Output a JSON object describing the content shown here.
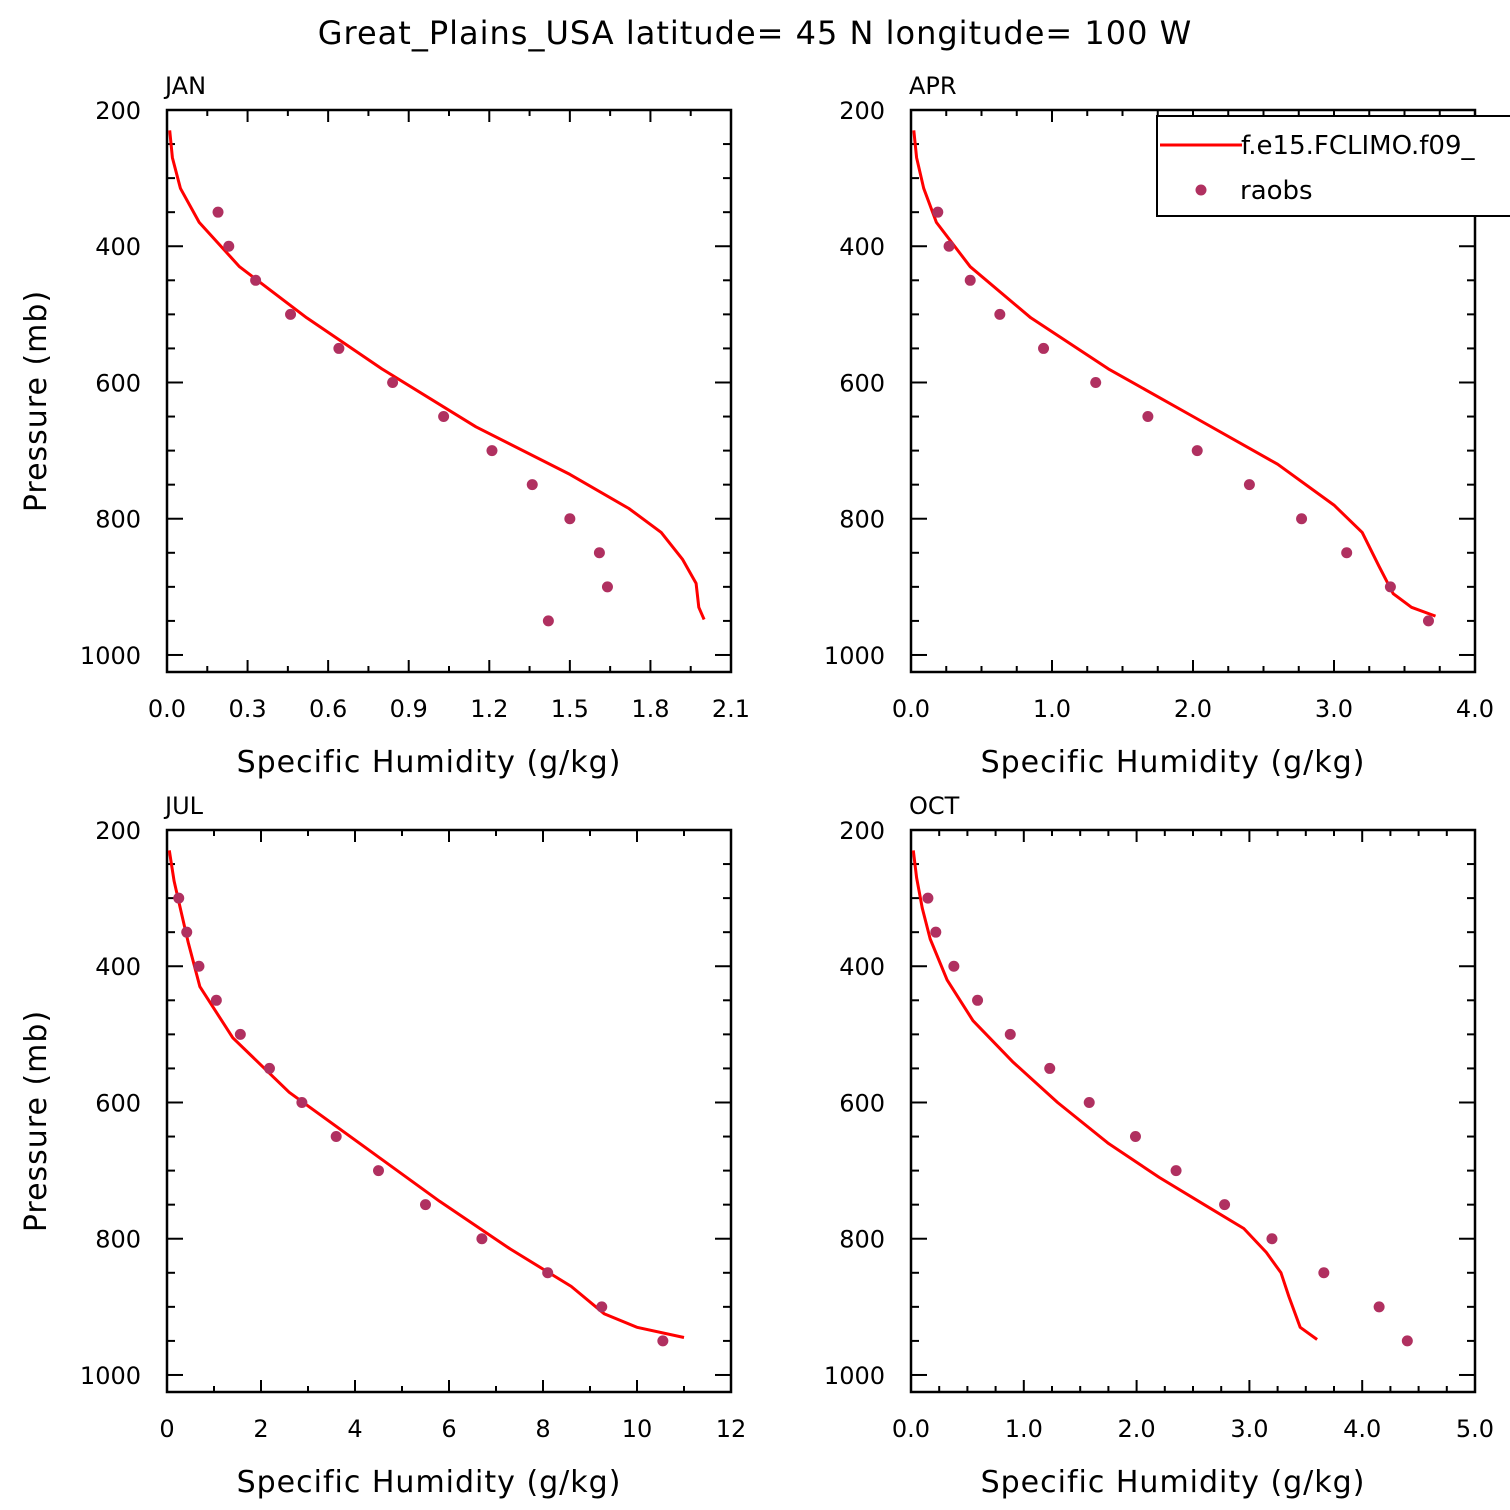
{
  "title": "Great_Plains_USA  latitude= 45 N longitude= 100 W",
  "legend": {
    "model_label": "f.e15.FCLIMO.f09_",
    "obs_label": "raobs"
  },
  "colors": {
    "model_line": "#ff0000",
    "obs_marker": "#b03060",
    "axes": "#000000"
  },
  "chart_data": [
    {
      "type": "line",
      "panel": "JAN",
      "xlabel": "Specific Humidity (g/kg)",
      "ylabel": "Pressure (mb)",
      "xlim": [
        0.0,
        2.1
      ],
      "ylim": [
        1025,
        200
      ],
      "y_inverted": true,
      "xticks": [
        "0.0",
        "0.3",
        "0.6",
        "0.9",
        "1.2",
        "1.5",
        "1.8",
        "2.1"
      ],
      "yticks": [
        "200",
        "400",
        "600",
        "800",
        "1000"
      ],
      "series": [
        {
          "name": "f.e15.FCLIMO.f09_",
          "kind": "line",
          "x": [
            0.01,
            0.02,
            0.05,
            0.12,
            0.27,
            0.52,
            0.8,
            1.15,
            1.5,
            1.72,
            1.84,
            1.92,
            1.97,
            1.98,
            2.0
          ],
          "y": [
            230,
            270,
            315,
            365,
            430,
            505,
            580,
            665,
            735,
            785,
            820,
            860,
            895,
            930,
            948
          ]
        },
        {
          "name": "raobs",
          "kind": "scatter",
          "x": [
            0.19,
            0.23,
            0.33,
            0.46,
            0.64,
            0.84,
            1.03,
            1.21,
            1.36,
            1.5,
            1.61,
            1.64,
            1.42
          ],
          "y": [
            350,
            400,
            450,
            500,
            550,
            600,
            650,
            700,
            750,
            800,
            850,
            900,
            950
          ]
        }
      ]
    },
    {
      "type": "line",
      "panel": "APR",
      "xlabel": "Specific Humidity (g/kg)",
      "ylabel": "",
      "xlim": [
        0.0,
        4.0
      ],
      "ylim": [
        1025,
        200
      ],
      "y_inverted": true,
      "xticks": [
        "0.0",
        "1.0",
        "2.0",
        "3.0",
        "4.0"
      ],
      "yticks": [
        "200",
        "400",
        "600",
        "800",
        "1000"
      ],
      "legend_position": "top-right",
      "series": [
        {
          "name": "f.e15.FCLIMO.f09_",
          "kind": "line",
          "x": [
            0.02,
            0.04,
            0.09,
            0.18,
            0.42,
            0.85,
            1.4,
            2.0,
            2.6,
            3.0,
            3.2,
            3.32,
            3.42,
            3.55,
            3.72
          ],
          "y": [
            230,
            270,
            315,
            365,
            430,
            505,
            580,
            650,
            720,
            780,
            820,
            870,
            910,
            930,
            943
          ]
        },
        {
          "name": "raobs",
          "kind": "scatter",
          "x": [
            0.19,
            0.27,
            0.42,
            0.63,
            0.94,
            1.31,
            1.68,
            2.03,
            2.4,
            2.77,
            3.09,
            3.4,
            3.67
          ],
          "y": [
            350,
            400,
            450,
            500,
            550,
            600,
            650,
            700,
            750,
            800,
            850,
            900,
            950
          ]
        }
      ]
    },
    {
      "type": "line",
      "panel": "JUL",
      "xlabel": "Specific Humidity (g/kg)",
      "ylabel": "Pressure (mb)",
      "xlim": [
        0,
        12
      ],
      "ylim": [
        1025,
        200
      ],
      "y_inverted": true,
      "xticks": [
        "0",
        "2",
        "4",
        "6",
        "8",
        "10",
        "12"
      ],
      "yticks": [
        "200",
        "400",
        "600",
        "800",
        "1000"
      ],
      "series": [
        {
          "name": "f.e15.FCLIMO.f09_",
          "kind": "line",
          "x": [
            0.05,
            0.15,
            0.3,
            0.45,
            0.7,
            1.4,
            2.6,
            4.3,
            5.8,
            7.3,
            8.6,
            9.3,
            10.0,
            11.0
          ],
          "y": [
            230,
            275,
            320,
            365,
            430,
            505,
            585,
            670,
            745,
            815,
            870,
            910,
            930,
            945
          ]
        },
        {
          "name": "raobs",
          "kind": "scatter",
          "x": [
            0.25,
            0.42,
            0.68,
            1.05,
            1.56,
            2.18,
            2.87,
            3.6,
            4.5,
            5.5,
            6.7,
            8.1,
            9.25,
            10.55
          ],
          "y": [
            300,
            350,
            400,
            450,
            500,
            550,
            600,
            650,
            700,
            750,
            800,
            850,
            900,
            950
          ]
        }
      ]
    },
    {
      "type": "line",
      "panel": "OCT",
      "xlabel": "Specific Humidity (g/kg)",
      "ylabel": "",
      "xlim": [
        0.0,
        5.0
      ],
      "ylim": [
        1025,
        200
      ],
      "y_inverted": true,
      "xticks": [
        "0.0",
        "1.0",
        "2.0",
        "3.0",
        "4.0",
        "5.0"
      ],
      "yticks": [
        "200",
        "400",
        "600",
        "800",
        "1000"
      ],
      "series": [
        {
          "name": "f.e15.FCLIMO.f09_",
          "kind": "line",
          "x": [
            0.02,
            0.05,
            0.1,
            0.17,
            0.32,
            0.55,
            0.9,
            1.3,
            1.75,
            2.2,
            2.6,
            2.95,
            3.15,
            3.28,
            3.35,
            3.45,
            3.6
          ],
          "y": [
            230,
            270,
            315,
            360,
            420,
            480,
            540,
            600,
            660,
            710,
            750,
            785,
            820,
            850,
            885,
            930,
            948
          ]
        },
        {
          "name": "raobs",
          "kind": "scatter",
          "x": [
            0.15,
            0.22,
            0.38,
            0.59,
            0.88,
            1.23,
            1.58,
            1.99,
            2.35,
            2.78,
            3.2,
            3.66,
            4.15,
            4.4
          ],
          "y": [
            300,
            350,
            400,
            450,
            500,
            550,
            600,
            650,
            700,
            750,
            800,
            850,
            900,
            950
          ]
        }
      ]
    }
  ]
}
